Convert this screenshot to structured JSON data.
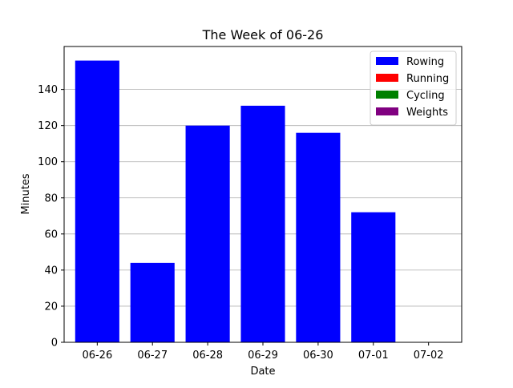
{
  "chart_data": {
    "type": "bar",
    "stacked": true,
    "title": "The Week of 06-26",
    "xlabel": "Date",
    "ylabel": "Minutes",
    "categories": [
      "06-26",
      "06-27",
      "06-28",
      "06-29",
      "06-30",
      "07-01",
      "07-02"
    ],
    "series": [
      {
        "name": "Rowing",
        "color": "#0000ff",
        "values": [
          156,
          44,
          120,
          131,
          116,
          72,
          0
        ]
      },
      {
        "name": "Running",
        "color": "#ff0000",
        "values": [
          0,
          0,
          0,
          0,
          0,
          0,
          0
        ]
      },
      {
        "name": "Cycling",
        "color": "#008000",
        "values": [
          0,
          0,
          0,
          0,
          0,
          0,
          0
        ]
      },
      {
        "name": "Weights",
        "color": "#800080",
        "values": [
          0,
          0,
          0,
          0,
          0,
          0,
          0
        ]
      }
    ],
    "ylim": [
      0,
      163.8
    ],
    "yticks": [
      0,
      20,
      40,
      60,
      80,
      100,
      120,
      140
    ],
    "grid": "y",
    "legend_position": "top-right"
  }
}
